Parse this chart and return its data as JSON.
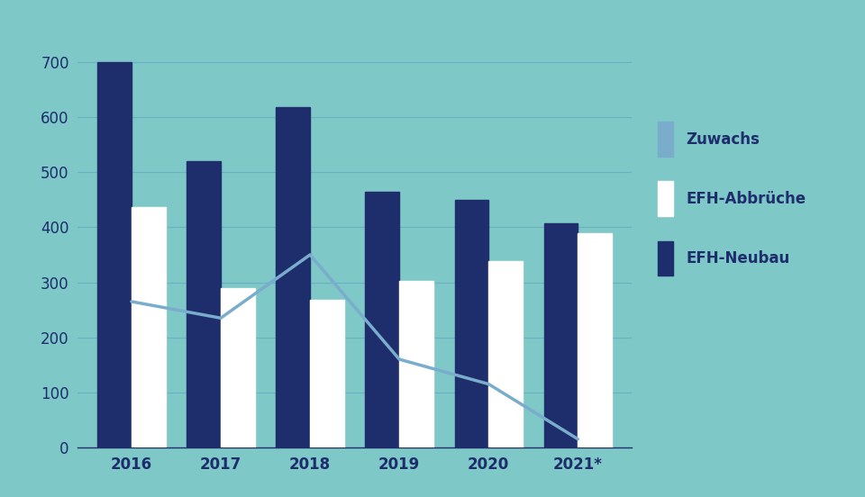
{
  "categories": [
    "2016",
    "2017",
    "2018",
    "2019",
    "2020",
    "2021*"
  ],
  "efh_neubau": [
    700,
    520,
    618,
    465,
    450,
    407
  ],
  "efh_abbruche": [
    437,
    290,
    268,
    302,
    338,
    390
  ],
  "zuwachs": [
    265,
    235,
    350,
    160,
    115,
    15
  ],
  "color_neubau": "#1e2d6b",
  "color_abbruche": "#ffffff",
  "color_zuwachs": "#7aaccc",
  "color_background": "#7ec8c8",
  "color_grid": "#6bafc0",
  "color_axis_text": "#1e2d6b",
  "color_legend_text": "#1e2d6b",
  "ylim": [
    0,
    750
  ],
  "yticks": [
    0,
    100,
    200,
    300,
    400,
    500,
    600,
    700
  ],
  "bar_width": 0.38,
  "legend_labels": [
    "Zuwachs",
    "EFH-Abbrüche",
    "EFH-Neubau"
  ]
}
